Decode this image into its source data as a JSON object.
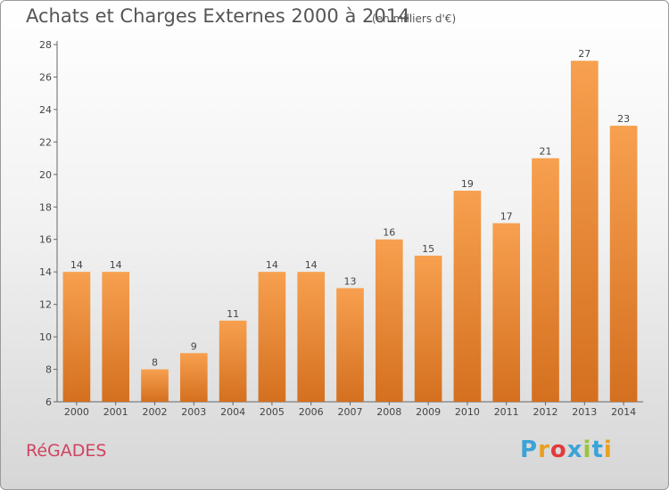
{
  "chart_data": {
    "type": "bar",
    "title": "Achats et Charges Externes 2000 à 2014",
    "subtitle": "(en milliers d'€)",
    "categories": [
      "2000",
      "2001",
      "2002",
      "2003",
      "2004",
      "2005",
      "2006",
      "2007",
      "2008",
      "2009",
      "2010",
      "2011",
      "2012",
      "2013",
      "2014"
    ],
    "values": [
      14,
      14,
      8,
      9,
      11,
      14,
      14,
      13,
      16,
      15,
      19,
      17,
      21,
      27,
      23
    ],
    "ylim": [
      6,
      28
    ],
    "yticks": [
      6,
      8,
      10,
      12,
      14,
      16,
      18,
      20,
      22,
      24,
      26,
      28
    ],
    "grid": false,
    "colors": {
      "bar_top": "#f7a04f",
      "bar_bottom": "#d4701f"
    }
  },
  "footer": {
    "town": "RéGADES",
    "logo": "Proxiti"
  },
  "logo_colors": [
    "#3aa3d8",
    "#e8a020",
    "#e23b3b",
    "#3aa3d8",
    "#9ac43b",
    "#3aa3d8",
    "#e8a020"
  ]
}
